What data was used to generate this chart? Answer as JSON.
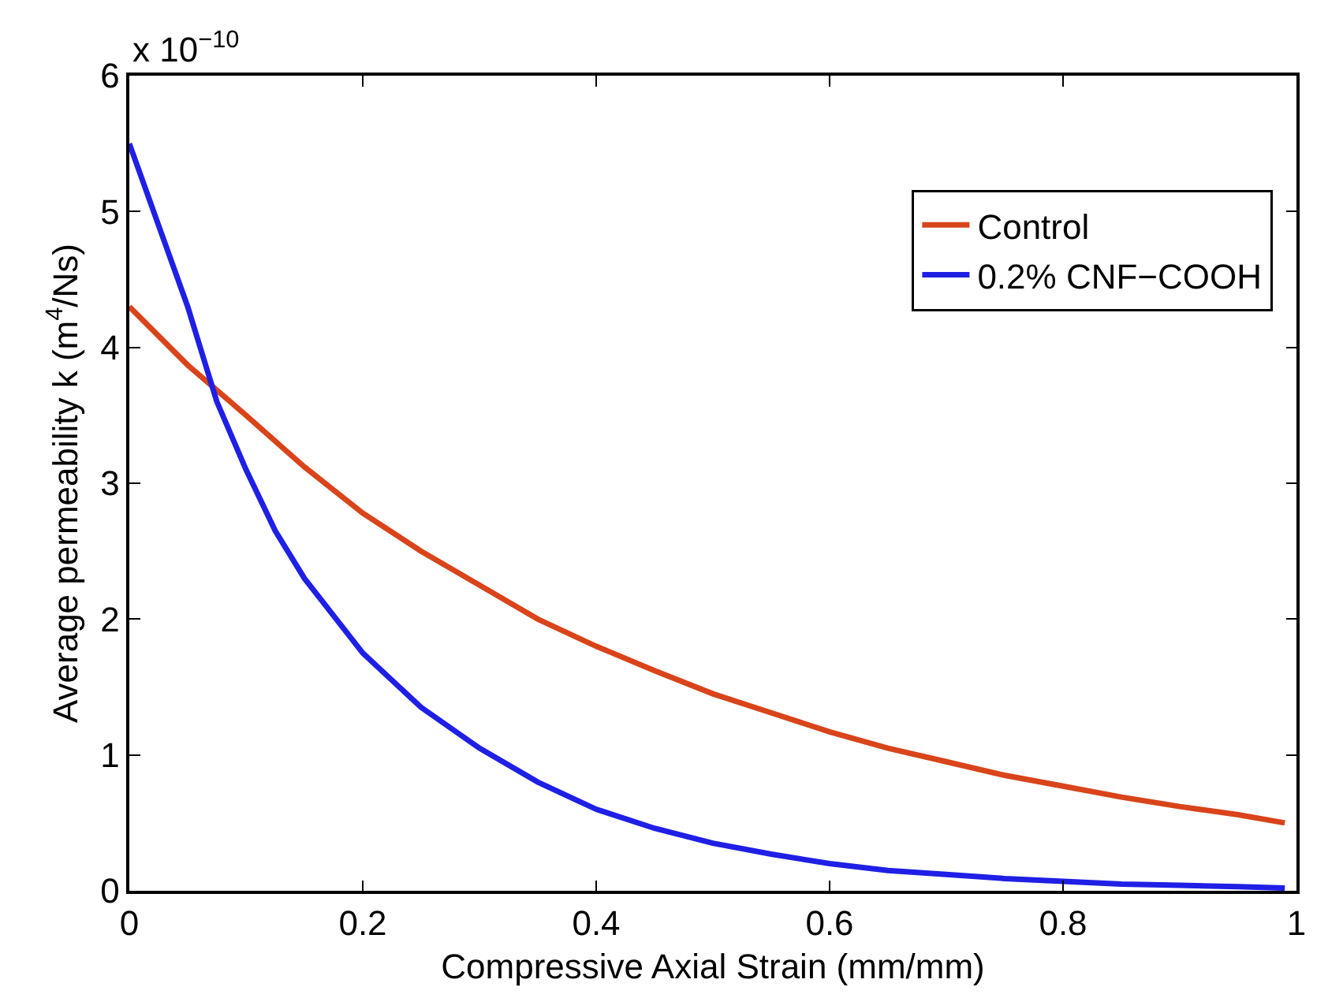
{
  "chart_data": {
    "type": "line",
    "xlabel": "Compressive Axial Strain (mm/mm)",
    "ylabel": "Average permeability k (m$^{4}$/Ns)",
    "annotations": [
      "x 10$^{−10}$"
    ],
    "xlim": [
      0,
      1
    ],
    "xticks": [
      0,
      0.2,
      0.4,
      0.6,
      0.8,
      1
    ],
    "ylim": [
      0,
      6
    ],
    "yticks": [
      0,
      1,
      2,
      3,
      4,
      5,
      6
    ],
    "grid": false,
    "legend": "top right",
    "line_style": "solid",
    "marker": "none",
    "series": [
      {
        "name": "Control",
        "color": "#d9441a",
        "x": [
          0,
          0.05,
          0.1,
          0.15,
          0.2,
          0.25,
          0.3,
          0.35,
          0.4,
          0.45,
          0.5,
          0.55,
          0.6,
          0.65,
          0.7,
          0.75,
          0.8,
          0.85,
          0.9,
          0.95,
          0.99
        ],
        "values": [
          4.3,
          3.87,
          3.5,
          3.12,
          2.78,
          2.5,
          2.25,
          2.0,
          1.8,
          1.62,
          1.45,
          1.31,
          1.17,
          1.05,
          0.95,
          0.85,
          0.77,
          0.69,
          0.62,
          0.56,
          0.5
        ]
      },
      {
        "name": "0.2% CNF−COOH",
        "color": "#1f1fe6",
        "x": [
          0,
          0.025,
          0.05,
          0.075,
          0.1,
          0.125,
          0.15,
          0.2,
          0.25,
          0.3,
          0.35,
          0.4,
          0.45,
          0.5,
          0.55,
          0.6,
          0.65,
          0.7,
          0.75,
          0.8,
          0.85,
          0.9,
          0.95,
          0.99
        ],
        "values": [
          5.5,
          4.9,
          4.3,
          3.6,
          3.1,
          2.65,
          2.3,
          1.75,
          1.35,
          1.05,
          0.8,
          0.6,
          0.46,
          0.35,
          0.27,
          0.2,
          0.15,
          0.12,
          0.09,
          0.07,
          0.05,
          0.04,
          0.03,
          0.02
        ]
      }
    ]
  }
}
